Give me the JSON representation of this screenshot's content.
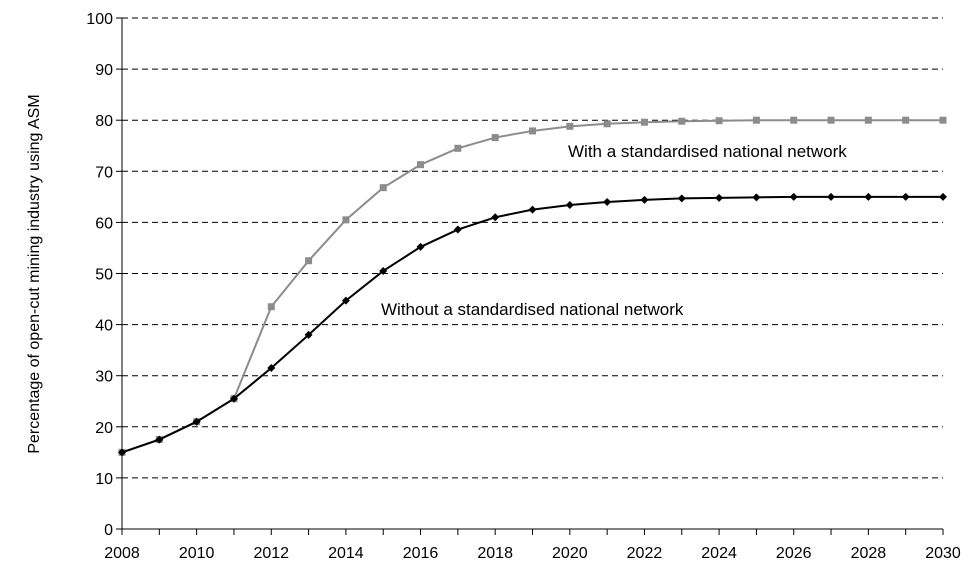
{
  "chart_data": {
    "type": "line",
    "title": "",
    "xlabel": "",
    "ylabel": "Percentage of open-cut mining industry using ASM",
    "xlim": [
      2008,
      2030
    ],
    "ylim": [
      0,
      100
    ],
    "x_ticks": [
      "2008",
      "2010",
      "2012",
      "2014",
      "2016",
      "2018",
      "2020",
      "2022",
      "2024",
      "2026",
      "2028",
      "2030"
    ],
    "y_ticks": [
      "0",
      "10",
      "20",
      "30",
      "40",
      "50",
      "60",
      "70",
      "80",
      "90",
      "100"
    ],
    "grid": true,
    "legend": "none",
    "x": [
      2008,
      2009,
      2010,
      2011,
      2012,
      2013,
      2014,
      2015,
      2016,
      2017,
      2018,
      2019,
      2020,
      2021,
      2022,
      2023,
      2024,
      2025,
      2026,
      2027,
      2028,
      2029,
      2030
    ],
    "series": [
      {
        "label": "With a standardised national network",
        "color": "#8c8c8c",
        "marker": "square",
        "values": [
          15.0,
          17.5,
          21.0,
          25.5,
          43.5,
          52.5,
          60.5,
          66.8,
          71.3,
          74.5,
          76.6,
          77.9,
          78.8,
          79.3,
          79.6,
          79.8,
          79.9,
          80.0,
          80.0,
          80.0,
          80.0,
          80.0,
          80.0
        ]
      },
      {
        "label": "Without a standardised national network",
        "color": "#000000",
        "marker": "diamond",
        "values": [
          15.0,
          17.5,
          21.0,
          25.5,
          31.5,
          38.0,
          44.7,
          50.5,
          55.2,
          58.6,
          61.0,
          62.5,
          63.4,
          64.0,
          64.4,
          64.7,
          64.8,
          64.9,
          65.0,
          65.0,
          65.0,
          65.0,
          65.0
        ]
      }
    ],
    "annotations": [
      {
        "text": "With a standardised national network",
        "series": 0
      },
      {
        "text": "Without a standardised national network",
        "series": 1
      }
    ]
  }
}
